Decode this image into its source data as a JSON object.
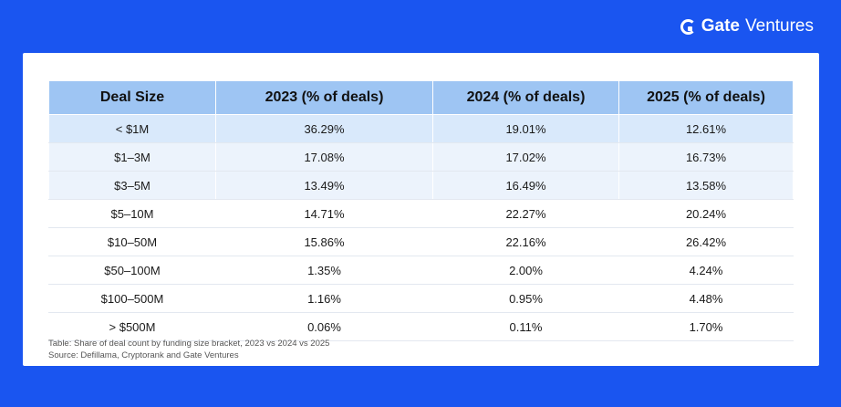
{
  "brand": {
    "bold": "Gate",
    "light": "Ventures"
  },
  "table": {
    "headers": [
      "Deal Size",
      "2023 (% of deals)",
      "2024 (% of deals)",
      "2025 (% of deals)"
    ],
    "rows": [
      [
        "< $1M",
        "36.29%",
        "19.01%",
        "12.61%"
      ],
      [
        "$1–3M",
        "17.08%",
        "17.02%",
        "16.73%"
      ],
      [
        "$3–5M",
        "13.49%",
        "16.49%",
        "13.58%"
      ],
      [
        "$5–10M",
        "14.71%",
        "22.27%",
        "20.24%"
      ],
      [
        "$10–50M",
        "15.86%",
        "22.16%",
        "26.42%"
      ],
      [
        "$50–100M",
        "1.35%",
        "2.00%",
        "4.24%"
      ],
      [
        "$100–500M",
        "1.16%",
        "0.95%",
        "4.48%"
      ],
      [
        "> $500M",
        "0.06%",
        "0.11%",
        "1.70%"
      ]
    ]
  },
  "caption": {
    "line1": "Table: Share of deal count by funding size bracket, 2023 vs 2024 vs 2025",
    "line2": "Source: Defillama, Cryptorank and Gate Ventures"
  }
}
